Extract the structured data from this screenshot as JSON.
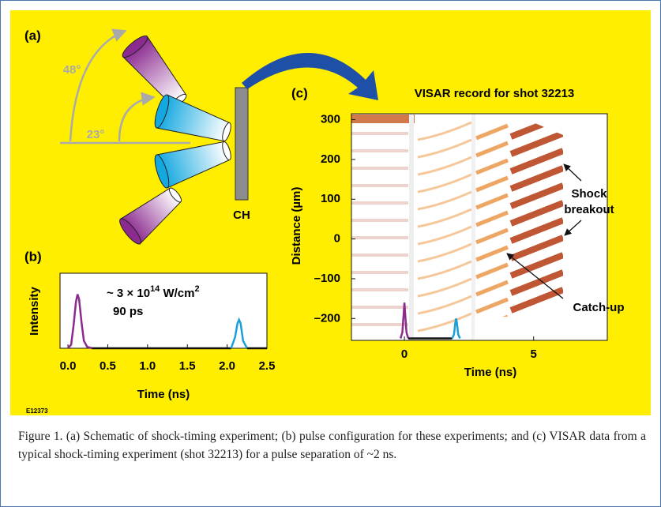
{
  "panel_a": {
    "label": "(a)",
    "angles": [
      "48°",
      "23°"
    ],
    "target": "CH"
  },
  "chart_data": [
    {
      "type": "line",
      "label": "(b)",
      "xlabel": "Time (ns)",
      "ylabel": "Intensity",
      "annotation": {
        "prefix": "~ 3 × 10",
        "exponent": "14",
        "unit": " W/cm",
        "unit_exponent": "2",
        "duration": "90 ps"
      },
      "xlim": [
        -0.1,
        2.5
      ],
      "xticks": [
        {
          "value": 0,
          "label": "0.0"
        },
        0.5,
        {
          "value": 1,
          "label": "1.0"
        },
        1.5,
        {
          "value": 2,
          "label": "2.0"
        },
        2.5
      ],
      "ylim": [
        0,
        1
      ],
      "series": [
        {
          "color": "#8b2a8f",
          "x": [
            0,
            0.04,
            0.07,
            0.1,
            0.12,
            0.14,
            0.17,
            0.2,
            0.24,
            0.3
          ],
          "values": [
            0,
            0.05,
            0.3,
            0.62,
            0.72,
            0.65,
            0.35,
            0.1,
            0.02,
            0
          ]
        },
        {
          "color": "#111111",
          "x": [
            0.3,
            2.05
          ],
          "values": [
            0,
            0
          ]
        },
        {
          "color": "#1aa0d8",
          "x": [
            2.05,
            2.1,
            2.13,
            2.15,
            2.17,
            2.2,
            2.25
          ],
          "values": [
            0,
            0.15,
            0.33,
            0.38,
            0.33,
            0.1,
            0
          ]
        },
        {
          "color": "#111111",
          "x": [
            2.25,
            2.5
          ],
          "values": [
            0,
            0
          ]
        }
      ]
    },
    {
      "type": "line",
      "label": "(c)",
      "title": "VISAR record for shot 32213",
      "xlabel": "Time (ns)",
      "ylabel": "Distance (µm)",
      "annotations": {
        "shock": [
          "Shock",
          "breakout"
        ],
        "catchup": "Catch-up"
      },
      "xlim": [
        -2.05,
        7.85
      ],
      "xticks": [
        0,
        5
      ],
      "ylim": [
        -255,
        315
      ],
      "yticks": [
        300,
        200,
        100,
        0,
        {
          "value": -100,
          "label": "–100"
        },
        {
          "value": -200,
          "label": "–200"
        }
      ],
      "series": [
        {
          "color": "#8b2a8f",
          "x": [
            -0.15,
            -0.08,
            -0.03,
            0,
            0.03,
            0.08,
            0.15
          ],
          "values": [
            -250,
            -235,
            -190,
            -160,
            -190,
            -235,
            -250
          ]
        },
        {
          "color": "#111111",
          "x": [
            0.15,
            1.85
          ],
          "values": [
            -250,
            -250
          ]
        },
        {
          "color": "#1aa0d8",
          "x": [
            1.85,
            1.92,
            1.97,
            2,
            2.03,
            2.08,
            2.15
          ],
          "values": [
            -250,
            -240,
            -210,
            -200,
            -210,
            -240,
            -250
          ]
        }
      ]
    }
  ],
  "code": "E12373",
  "caption": "Figure 1. (a) Schematic of shock-timing experiment; (b) pulse configuration for these experiments; and (c) VISAR data from a typical shock-timing experiment (shot 32213) for a pulse separation of ~2 ns."
}
